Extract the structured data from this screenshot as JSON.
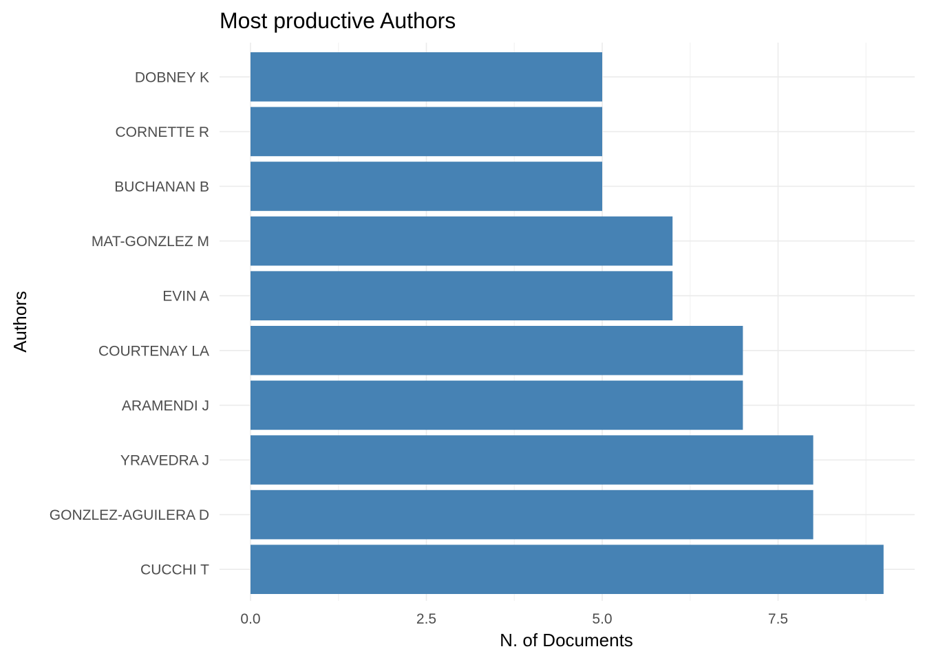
{
  "chart_data": {
    "type": "bar",
    "orientation": "horizontal",
    "title": "Most productive Authors",
    "xlabel": "N. of Documents",
    "ylabel": "Authors",
    "categories": [
      "DOBNEY K",
      "CORNETTE R",
      "BUCHANAN B",
      "MAT-GONZLEZ M",
      "EVIN A",
      "COURTENAY LA",
      "ARAMENDI J",
      "YRAVEDRA J",
      "GONZLEZ-AGUILERA D",
      "CUCCHI T"
    ],
    "values": [
      5,
      5,
      5,
      6,
      6,
      7,
      7,
      8,
      8,
      9
    ],
    "xlim": [
      0,
      9.45
    ],
    "x_ticks": [
      "0.0",
      "2.5",
      "5.0",
      "7.5"
    ],
    "grid": true,
    "legend": "none",
    "colors": {
      "bar": "#4682B4",
      "grid_major": "#ebebeb",
      "grid_minor": "#f3f3f3",
      "tick_text": "#4d4d4d",
      "background": "#ffffff"
    }
  }
}
